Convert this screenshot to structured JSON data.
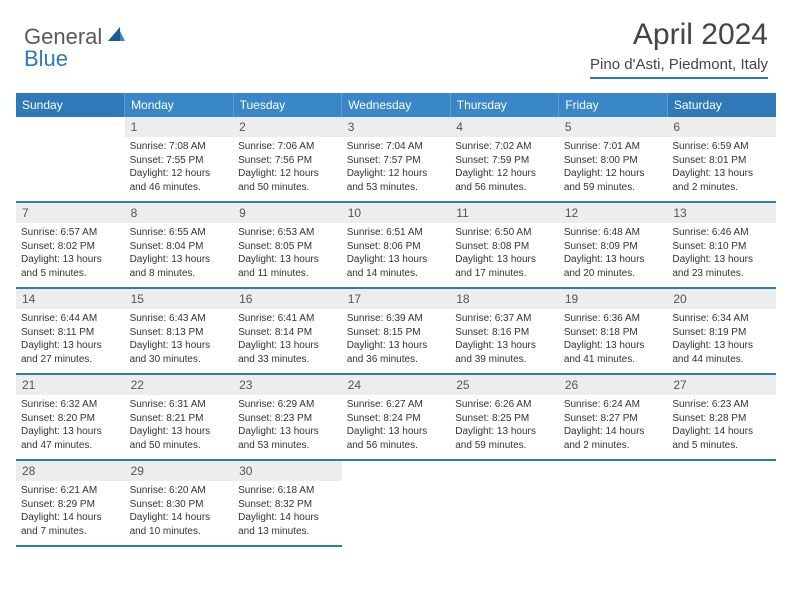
{
  "logo": {
    "part1": "General",
    "part2": "Blue"
  },
  "title": "April 2024",
  "location": "Pino d'Asti, Piedmont, Italy",
  "colors": {
    "header_bg": "#3a87c8",
    "header_edge": "#2f79b8",
    "border": "#2f79b8",
    "daynum_bg": "#eceded"
  },
  "weekdays": [
    "Sunday",
    "Monday",
    "Tuesday",
    "Wednesday",
    "Thursday",
    "Friday",
    "Saturday"
  ],
  "weeks": [
    [
      null,
      {
        "n": "1",
        "sr": "7:08 AM",
        "ss": "7:55 PM",
        "dl": "12 hours and 46 minutes."
      },
      {
        "n": "2",
        "sr": "7:06 AM",
        "ss": "7:56 PM",
        "dl": "12 hours and 50 minutes."
      },
      {
        "n": "3",
        "sr": "7:04 AM",
        "ss": "7:57 PM",
        "dl": "12 hours and 53 minutes."
      },
      {
        "n": "4",
        "sr": "7:02 AM",
        "ss": "7:59 PM",
        "dl": "12 hours and 56 minutes."
      },
      {
        "n": "5",
        "sr": "7:01 AM",
        "ss": "8:00 PM",
        "dl": "12 hours and 59 minutes."
      },
      {
        "n": "6",
        "sr": "6:59 AM",
        "ss": "8:01 PM",
        "dl": "13 hours and 2 minutes."
      }
    ],
    [
      {
        "n": "7",
        "sr": "6:57 AM",
        "ss": "8:02 PM",
        "dl": "13 hours and 5 minutes."
      },
      {
        "n": "8",
        "sr": "6:55 AM",
        "ss": "8:04 PM",
        "dl": "13 hours and 8 minutes."
      },
      {
        "n": "9",
        "sr": "6:53 AM",
        "ss": "8:05 PM",
        "dl": "13 hours and 11 minutes."
      },
      {
        "n": "10",
        "sr": "6:51 AM",
        "ss": "8:06 PM",
        "dl": "13 hours and 14 minutes."
      },
      {
        "n": "11",
        "sr": "6:50 AM",
        "ss": "8:08 PM",
        "dl": "13 hours and 17 minutes."
      },
      {
        "n": "12",
        "sr": "6:48 AM",
        "ss": "8:09 PM",
        "dl": "13 hours and 20 minutes."
      },
      {
        "n": "13",
        "sr": "6:46 AM",
        "ss": "8:10 PM",
        "dl": "13 hours and 23 minutes."
      }
    ],
    [
      {
        "n": "14",
        "sr": "6:44 AM",
        "ss": "8:11 PM",
        "dl": "13 hours and 27 minutes."
      },
      {
        "n": "15",
        "sr": "6:43 AM",
        "ss": "8:13 PM",
        "dl": "13 hours and 30 minutes."
      },
      {
        "n": "16",
        "sr": "6:41 AM",
        "ss": "8:14 PM",
        "dl": "13 hours and 33 minutes."
      },
      {
        "n": "17",
        "sr": "6:39 AM",
        "ss": "8:15 PM",
        "dl": "13 hours and 36 minutes."
      },
      {
        "n": "18",
        "sr": "6:37 AM",
        "ss": "8:16 PM",
        "dl": "13 hours and 39 minutes."
      },
      {
        "n": "19",
        "sr": "6:36 AM",
        "ss": "8:18 PM",
        "dl": "13 hours and 41 minutes."
      },
      {
        "n": "20",
        "sr": "6:34 AM",
        "ss": "8:19 PM",
        "dl": "13 hours and 44 minutes."
      }
    ],
    [
      {
        "n": "21",
        "sr": "6:32 AM",
        "ss": "8:20 PM",
        "dl": "13 hours and 47 minutes."
      },
      {
        "n": "22",
        "sr": "6:31 AM",
        "ss": "8:21 PM",
        "dl": "13 hours and 50 minutes."
      },
      {
        "n": "23",
        "sr": "6:29 AM",
        "ss": "8:23 PM",
        "dl": "13 hours and 53 minutes."
      },
      {
        "n": "24",
        "sr": "6:27 AM",
        "ss": "8:24 PM",
        "dl": "13 hours and 56 minutes."
      },
      {
        "n": "25",
        "sr": "6:26 AM",
        "ss": "8:25 PM",
        "dl": "13 hours and 59 minutes."
      },
      {
        "n": "26",
        "sr": "6:24 AM",
        "ss": "8:27 PM",
        "dl": "14 hours and 2 minutes."
      },
      {
        "n": "27",
        "sr": "6:23 AM",
        "ss": "8:28 PM",
        "dl": "14 hours and 5 minutes."
      }
    ],
    [
      {
        "n": "28",
        "sr": "6:21 AM",
        "ss": "8:29 PM",
        "dl": "14 hours and 7 minutes."
      },
      {
        "n": "29",
        "sr": "6:20 AM",
        "ss": "8:30 PM",
        "dl": "14 hours and 10 minutes."
      },
      {
        "n": "30",
        "sr": "6:18 AM",
        "ss": "8:32 PM",
        "dl": "14 hours and 13 minutes."
      },
      null,
      null,
      null,
      null
    ]
  ],
  "labels": {
    "sunrise": "Sunrise:",
    "sunset": "Sunset:",
    "daylight": "Daylight:"
  }
}
